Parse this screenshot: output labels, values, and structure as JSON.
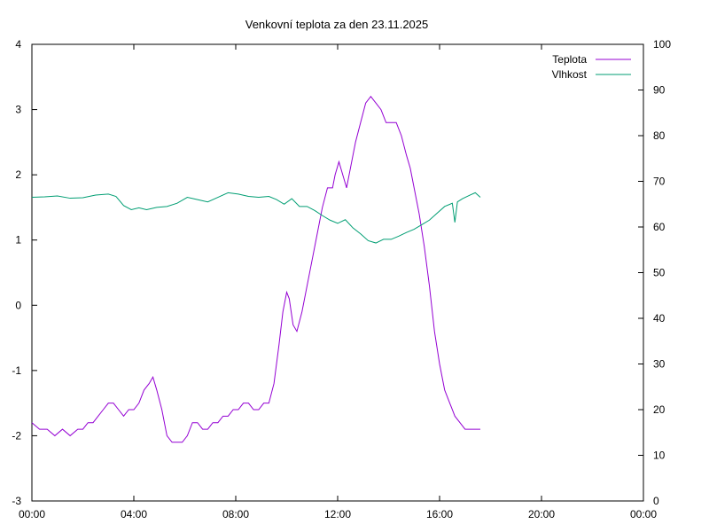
{
  "chart_data": {
    "type": "line",
    "title": "Venkovní teplota za den 23.11.2025",
    "x_tick_labels": [
      "00:00",
      "04:00",
      "08:00",
      "12:00",
      "16:00",
      "20:00",
      "00:00"
    ],
    "x_range_hours": [
      0,
      24
    ],
    "y_left_ticks": [
      -3,
      -2,
      -1,
      0,
      1,
      2,
      3,
      4
    ],
    "y_left_range": [
      -3,
      4
    ],
    "y_right_ticks": [
      0,
      10,
      20,
      30,
      40,
      50,
      60,
      70,
      80,
      90,
      100
    ],
    "y_right_range": [
      0,
      100
    ],
    "grid": false,
    "legend_position": "top-right",
    "series": [
      {
        "name": "Teplota",
        "axis": "left",
        "color": "#9400d3",
        "points": [
          [
            0.0,
            -1.8
          ],
          [
            0.3,
            -1.9
          ],
          [
            0.6,
            -1.9
          ],
          [
            0.9,
            -2.0
          ],
          [
            1.2,
            -1.9
          ],
          [
            1.5,
            -2.0
          ],
          [
            1.8,
            -1.9
          ],
          [
            2.0,
            -1.9
          ],
          [
            2.2,
            -1.8
          ],
          [
            2.4,
            -1.8
          ],
          [
            2.6,
            -1.7
          ],
          [
            2.8,
            -1.6
          ],
          [
            3.0,
            -1.5
          ],
          [
            3.2,
            -1.5
          ],
          [
            3.4,
            -1.6
          ],
          [
            3.6,
            -1.7
          ],
          [
            3.8,
            -1.6
          ],
          [
            4.0,
            -1.6
          ],
          [
            4.2,
            -1.5
          ],
          [
            4.4,
            -1.3
          ],
          [
            4.6,
            -1.2
          ],
          [
            4.75,
            -1.1
          ],
          [
            4.9,
            -1.3
          ],
          [
            5.1,
            -1.6
          ],
          [
            5.3,
            -2.0
          ],
          [
            5.5,
            -2.1
          ],
          [
            5.7,
            -2.1
          ],
          [
            5.9,
            -2.1
          ],
          [
            6.1,
            -2.0
          ],
          [
            6.3,
            -1.8
          ],
          [
            6.5,
            -1.8
          ],
          [
            6.7,
            -1.9
          ],
          [
            6.9,
            -1.9
          ],
          [
            7.1,
            -1.8
          ],
          [
            7.3,
            -1.8
          ],
          [
            7.5,
            -1.7
          ],
          [
            7.7,
            -1.7
          ],
          [
            7.9,
            -1.6
          ],
          [
            8.1,
            -1.6
          ],
          [
            8.3,
            -1.5
          ],
          [
            8.5,
            -1.5
          ],
          [
            8.7,
            -1.6
          ],
          [
            8.9,
            -1.6
          ],
          [
            9.1,
            -1.5
          ],
          [
            9.3,
            -1.5
          ],
          [
            9.5,
            -1.2
          ],
          [
            9.7,
            -0.6
          ],
          [
            9.85,
            -0.1
          ],
          [
            10.0,
            0.2
          ],
          [
            10.1,
            0.1
          ],
          [
            10.25,
            -0.3
          ],
          [
            10.4,
            -0.4
          ],
          [
            10.6,
            -0.1
          ],
          [
            10.8,
            0.3
          ],
          [
            11.0,
            0.7
          ],
          [
            11.2,
            1.1
          ],
          [
            11.4,
            1.5
          ],
          [
            11.6,
            1.8
          ],
          [
            11.8,
            1.8
          ],
          [
            11.9,
            2.0
          ],
          [
            12.05,
            2.2
          ],
          [
            12.2,
            2.0
          ],
          [
            12.35,
            1.8
          ],
          [
            12.5,
            2.1
          ],
          [
            12.7,
            2.5
          ],
          [
            12.9,
            2.8
          ],
          [
            13.1,
            3.1
          ],
          [
            13.3,
            3.2
          ],
          [
            13.5,
            3.1
          ],
          [
            13.7,
            3.0
          ],
          [
            13.9,
            2.8
          ],
          [
            14.1,
            2.8
          ],
          [
            14.3,
            2.8
          ],
          [
            14.5,
            2.6
          ],
          [
            14.7,
            2.3
          ],
          [
            14.85,
            2.1
          ],
          [
            15.0,
            1.8
          ],
          [
            15.2,
            1.4
          ],
          [
            15.4,
            0.9
          ],
          [
            15.6,
            0.3
          ],
          [
            15.8,
            -0.4
          ],
          [
            16.0,
            -0.9
          ],
          [
            16.2,
            -1.3
          ],
          [
            16.4,
            -1.5
          ],
          [
            16.6,
            -1.7
          ],
          [
            16.8,
            -1.8
          ],
          [
            17.0,
            -1.9
          ],
          [
            17.3,
            -1.9
          ],
          [
            17.6,
            -1.9
          ]
        ]
      },
      {
        "name": "Vlhkost",
        "axis": "right",
        "color": "#009e73",
        "points": [
          [
            0.0,
            66.5
          ],
          [
            0.5,
            66.6
          ],
          [
            1.0,
            66.8
          ],
          [
            1.5,
            66.3
          ],
          [
            2.0,
            66.4
          ],
          [
            2.5,
            67.0
          ],
          [
            3.0,
            67.2
          ],
          [
            3.3,
            66.7
          ],
          [
            3.6,
            64.7
          ],
          [
            3.9,
            63.8
          ],
          [
            4.2,
            64.2
          ],
          [
            4.5,
            63.8
          ],
          [
            4.9,
            64.3
          ],
          [
            5.3,
            64.5
          ],
          [
            5.7,
            65.2
          ],
          [
            6.1,
            66.5
          ],
          [
            6.5,
            66.0
          ],
          [
            6.9,
            65.5
          ],
          [
            7.3,
            66.5
          ],
          [
            7.7,
            67.5
          ],
          [
            8.1,
            67.2
          ],
          [
            8.5,
            66.7
          ],
          [
            8.9,
            66.5
          ],
          [
            9.3,
            66.7
          ],
          [
            9.6,
            66.0
          ],
          [
            9.9,
            65.0
          ],
          [
            10.2,
            66.2
          ],
          [
            10.5,
            64.5
          ],
          [
            10.8,
            64.5
          ],
          [
            11.1,
            63.6
          ],
          [
            11.4,
            62.5
          ],
          [
            11.7,
            61.5
          ],
          [
            12.0,
            60.8
          ],
          [
            12.3,
            61.6
          ],
          [
            12.6,
            59.8
          ],
          [
            12.9,
            58.5
          ],
          [
            13.2,
            57.0
          ],
          [
            13.5,
            56.5
          ],
          [
            13.8,
            57.3
          ],
          [
            14.1,
            57.3
          ],
          [
            14.4,
            58.0
          ],
          [
            14.7,
            58.8
          ],
          [
            15.0,
            59.5
          ],
          [
            15.3,
            60.5
          ],
          [
            15.6,
            61.5
          ],
          [
            15.9,
            63.0
          ],
          [
            16.2,
            64.5
          ],
          [
            16.5,
            65.2
          ],
          [
            16.6,
            61.0
          ],
          [
            16.7,
            65.5
          ],
          [
            16.9,
            66.2
          ],
          [
            17.2,
            67.0
          ],
          [
            17.4,
            67.5
          ],
          [
            17.6,
            66.5
          ]
        ]
      }
    ]
  }
}
